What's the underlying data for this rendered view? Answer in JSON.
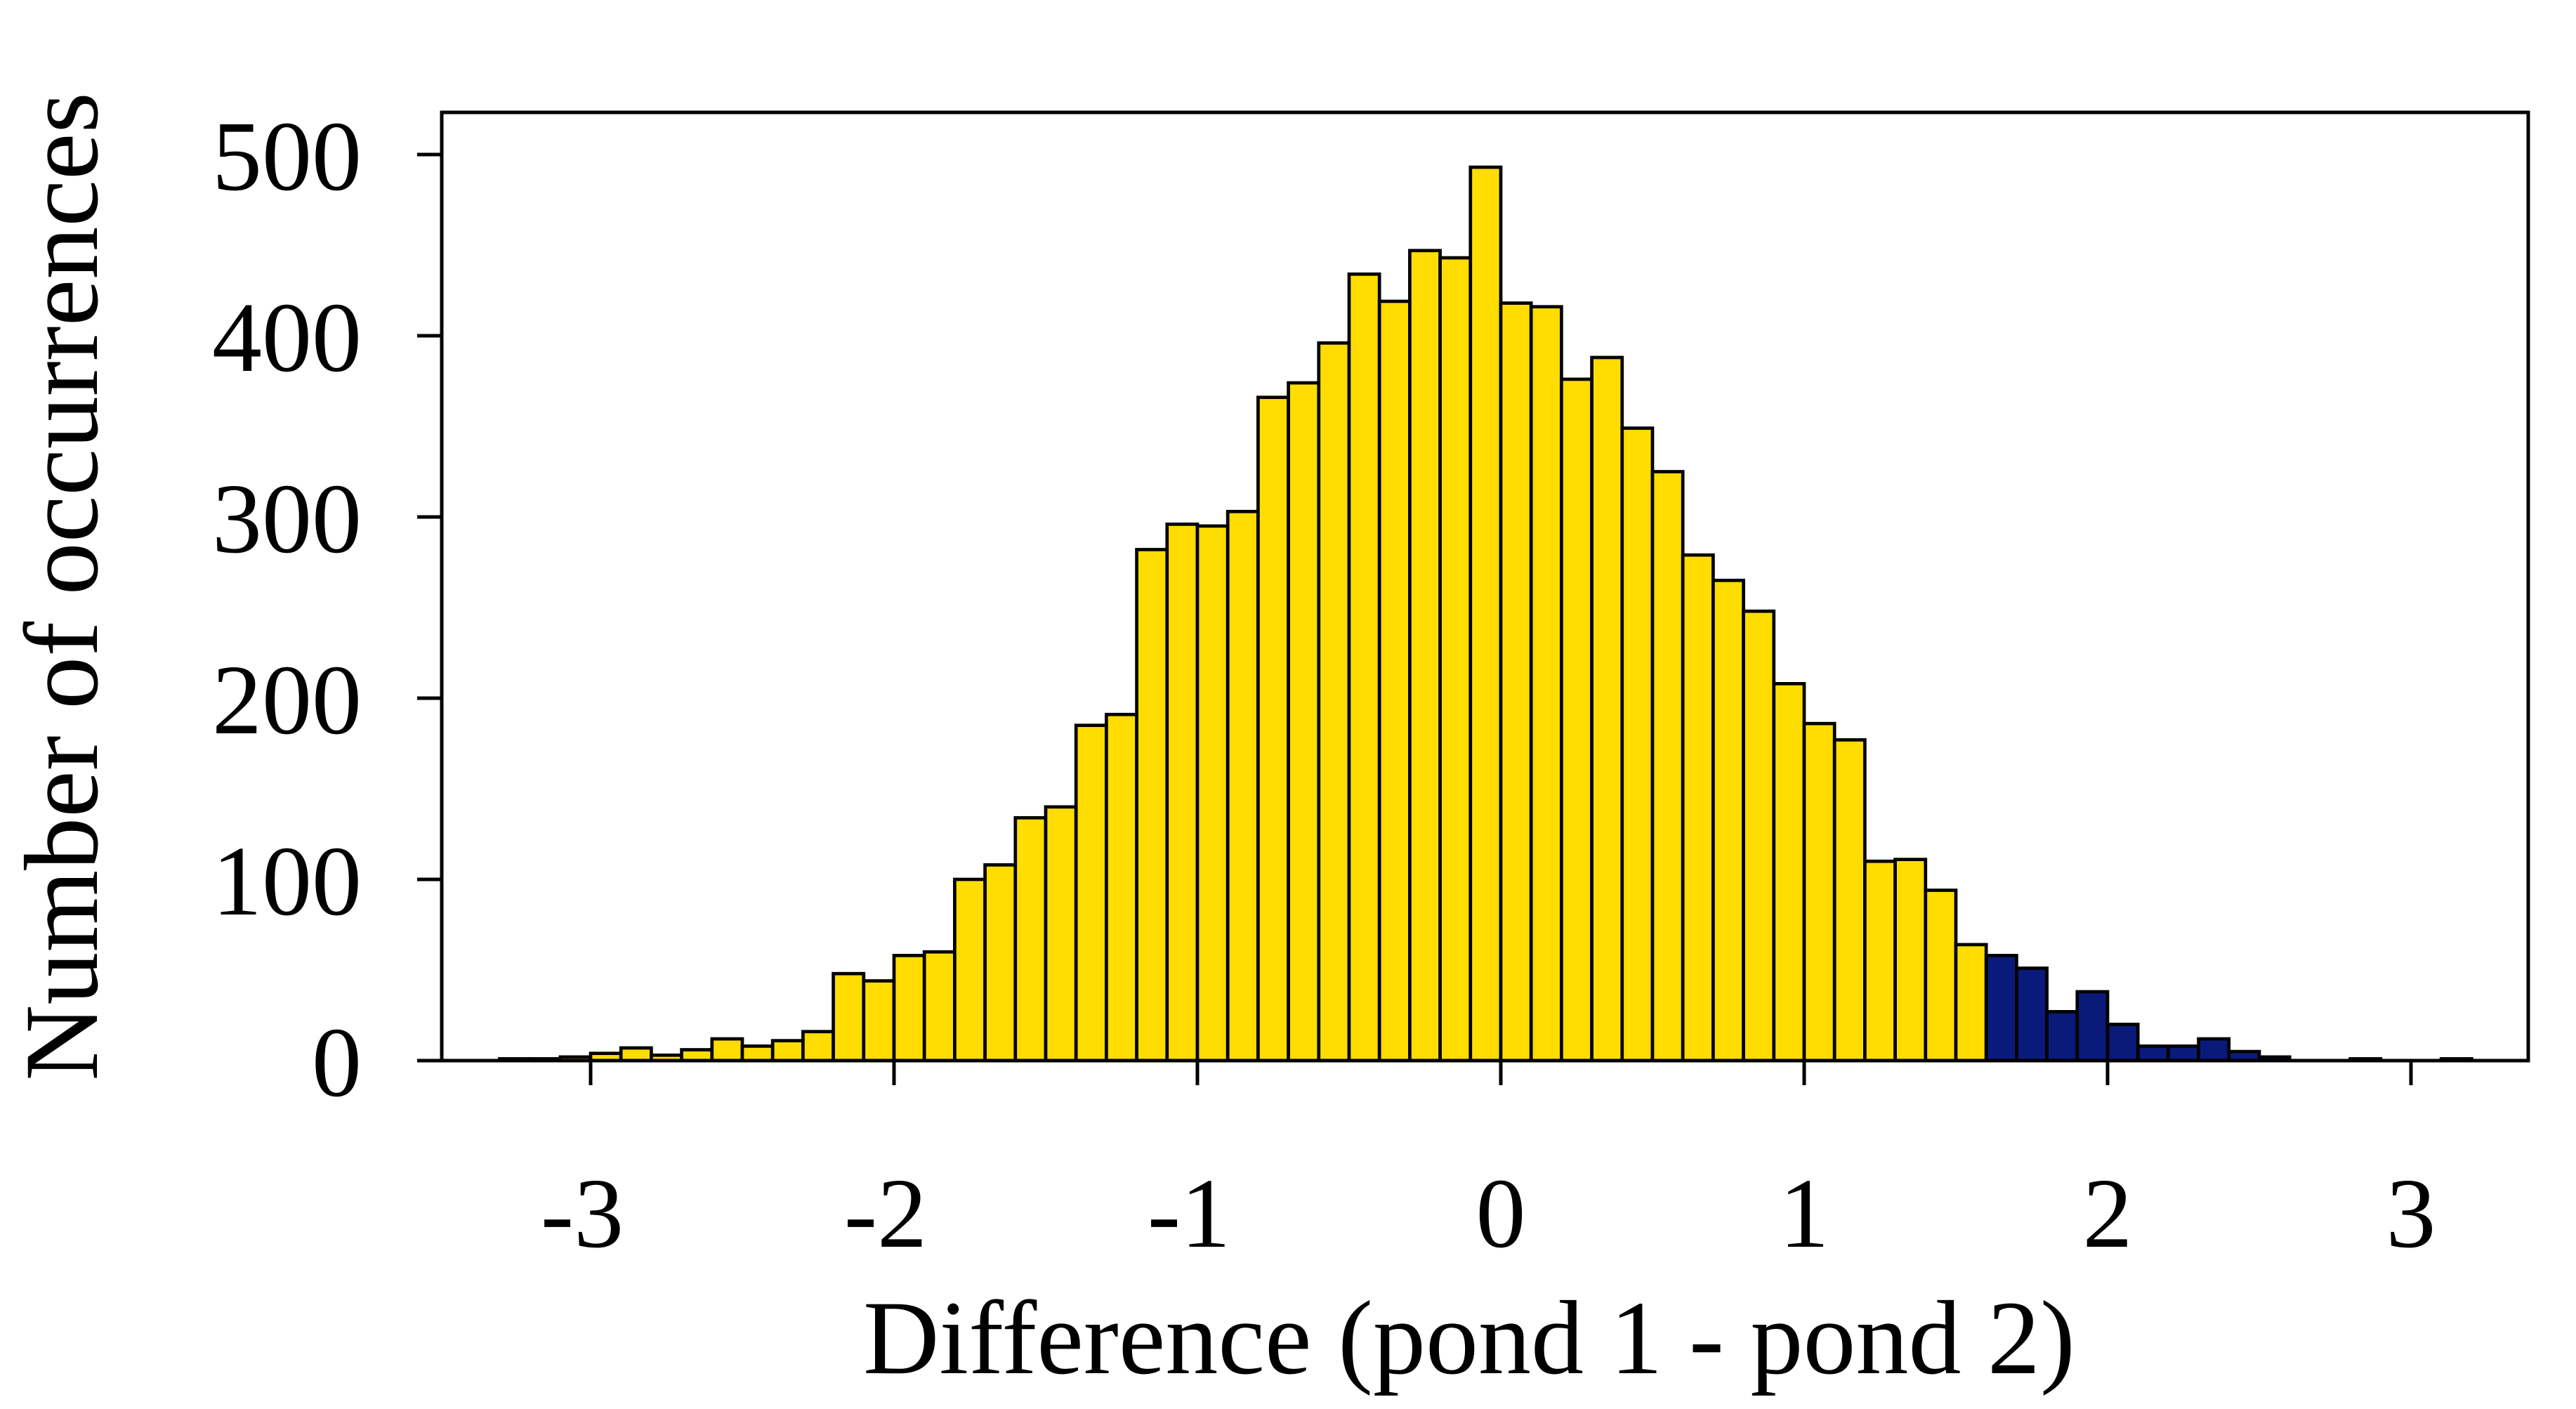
{
  "chart_data": {
    "type": "bar",
    "subtype": "histogram",
    "title": "",
    "xlabel": "Difference (pond 1 - pond 2)",
    "ylabel": "Number of occurrences",
    "xlim": [
      -3.3,
      3.3
    ],
    "ylim": [
      0,
      520
    ],
    "x_ticks": [
      -3,
      -2,
      -1,
      0,
      1,
      2,
      3
    ],
    "x_tick_labels": [
      "-3",
      "-2",
      "-1",
      "0",
      "1",
      "2",
      "3"
    ],
    "y_ticks": [
      0,
      100,
      200,
      300,
      400,
      500
    ],
    "y_tick_labels": [
      "0",
      "100",
      "200",
      "300",
      "400",
      "500"
    ],
    "grid": false,
    "legend": "none",
    "bin_width": 0.1,
    "bin_start": -3.3,
    "values": [
      1,
      1,
      2,
      4,
      7,
      3,
      6,
      12,
      8,
      11,
      16,
      48,
      44,
      58,
      60,
      100,
      108,
      134,
      140,
      185,
      191,
      282,
      296,
      295,
      303,
      366,
      374,
      396,
      434,
      419,
      447,
      443,
      493,
      418,
      416,
      376,
      388,
      349,
      325,
      279,
      265,
      248,
      208,
      186,
      177,
      110,
      111,
      94,
      64,
      58,
      51,
      27,
      38,
      20,
      8,
      8,
      12,
      5,
      2,
      0,
      0,
      1,
      0,
      0,
      1,
      0
    ],
    "highlight_from_bin": 49,
    "colors": {
      "bar": "#FFDD00",
      "highlight": "#0A1A7A",
      "outline": "#000000"
    }
  }
}
